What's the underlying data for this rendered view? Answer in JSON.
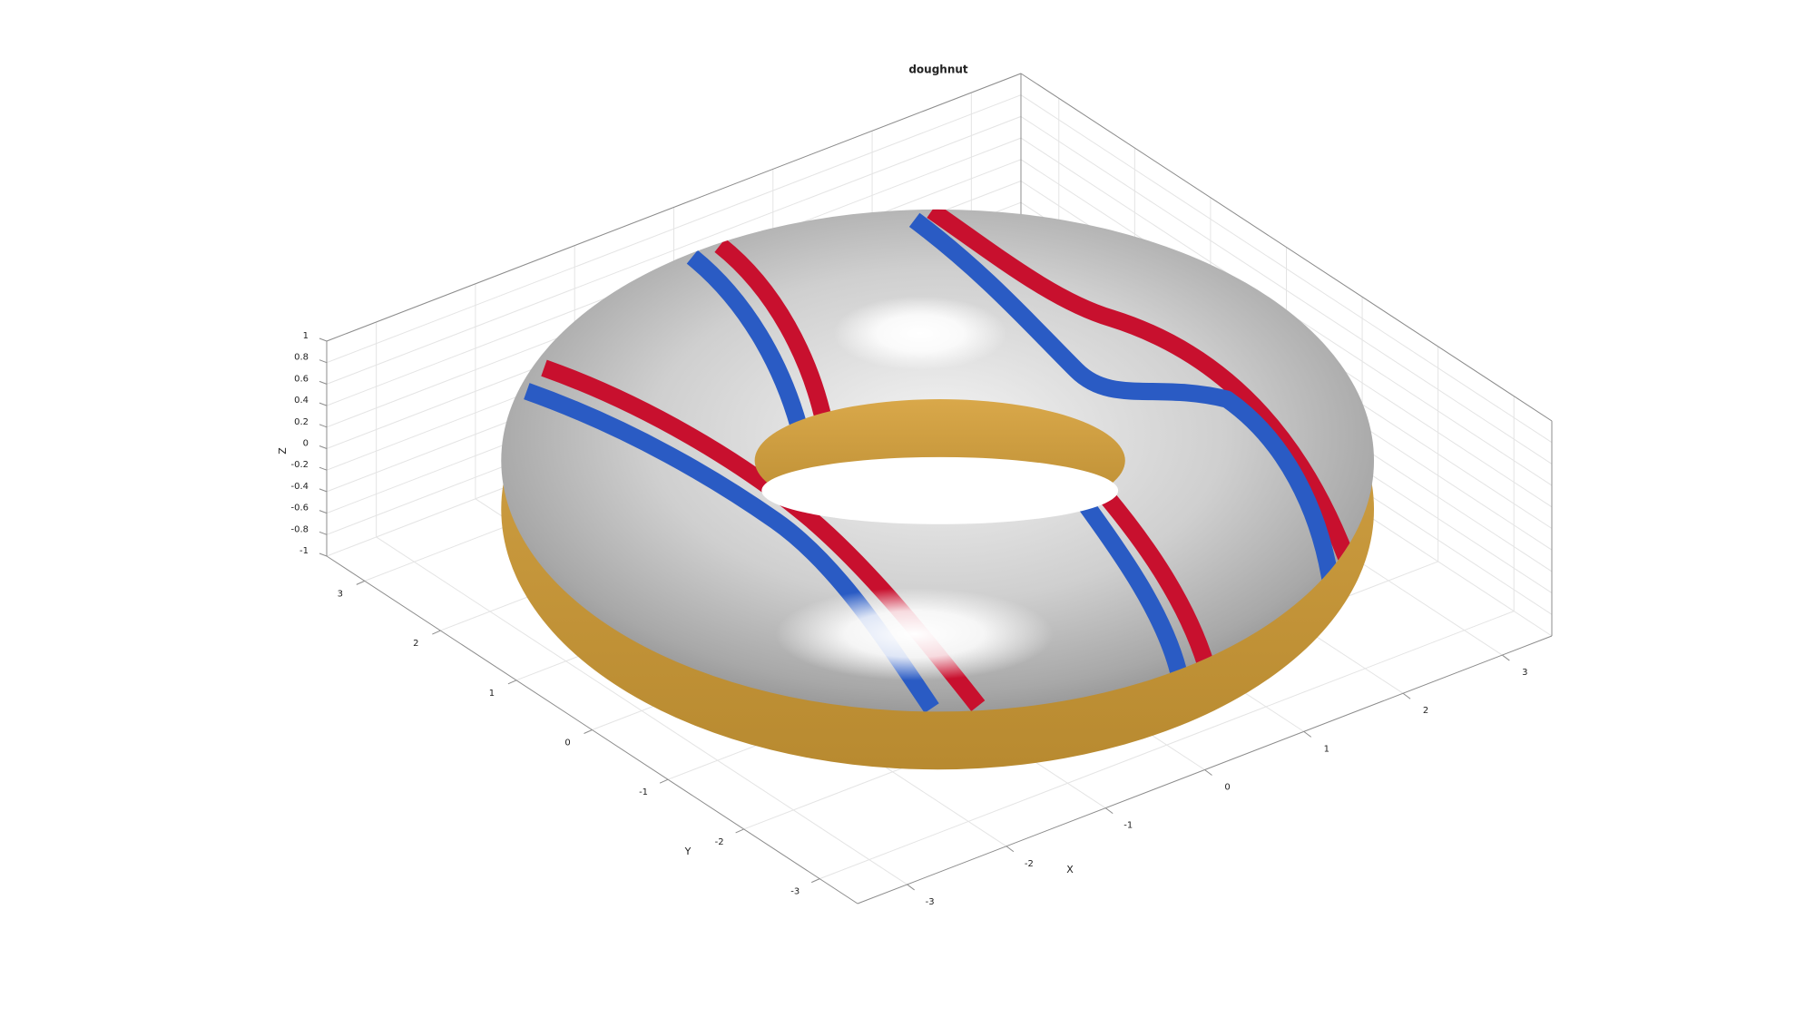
{
  "chart_data": {
    "type": "surface3d",
    "title": "doughnut",
    "xlabel": "X",
    "ylabel": "Y",
    "zlabel": "Z",
    "xlim": [
      -3.5,
      3.5
    ],
    "xticks": [
      -3,
      -2,
      -1,
      0,
      1,
      2,
      3
    ],
    "ylim": [
      -3.5,
      3.5
    ],
    "yticks": [
      -3,
      -2,
      -1,
      0,
      1,
      2,
      3
    ],
    "zlim": [
      -1,
      1
    ],
    "zticks": [
      -1,
      -0.8,
      -0.6,
      -0.4,
      -0.2,
      0,
      0.2,
      0.4,
      0.6,
      0.8,
      1
    ],
    "grid": true
  }
}
